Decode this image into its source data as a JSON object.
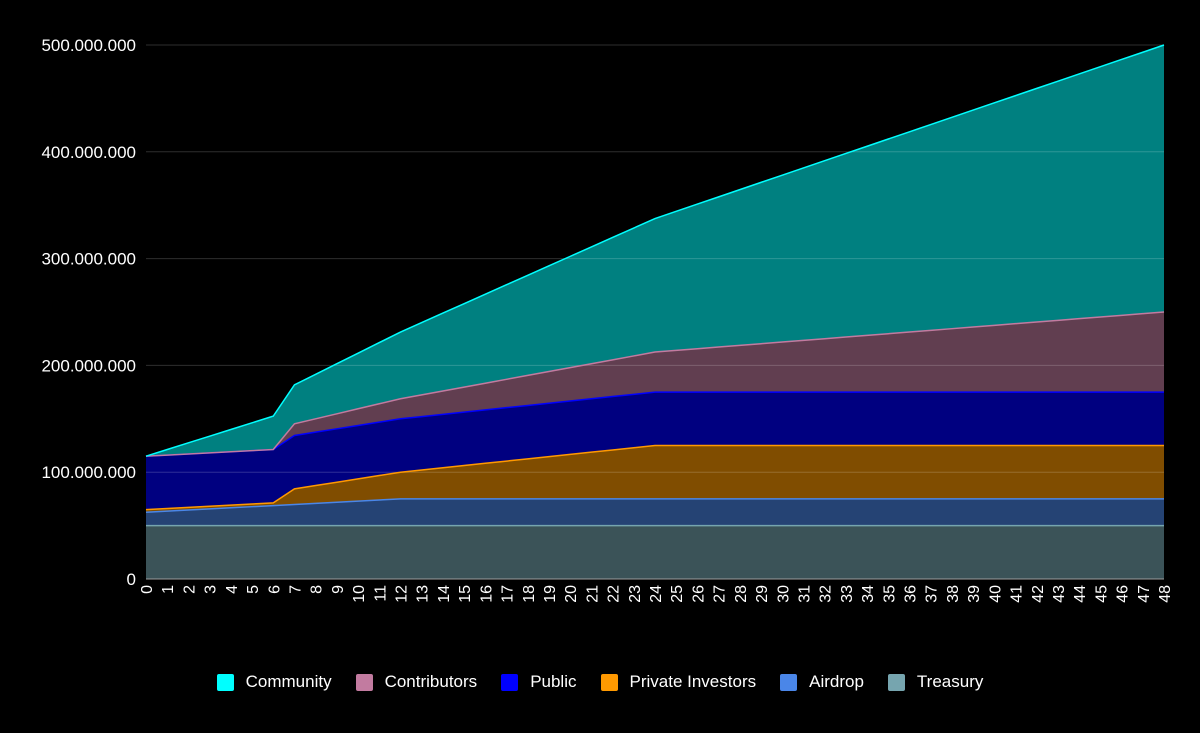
{
  "chart_data": {
    "type": "area",
    "stacked": true,
    "title": "",
    "xlabel": "",
    "ylabel": "",
    "x": [
      0,
      1,
      2,
      3,
      4,
      5,
      6,
      7,
      8,
      9,
      10,
      11,
      12,
      13,
      14,
      15,
      16,
      17,
      18,
      19,
      20,
      21,
      22,
      23,
      24,
      25,
      26,
      27,
      28,
      29,
      30,
      31,
      32,
      33,
      34,
      35,
      36,
      37,
      38,
      39,
      40,
      41,
      42,
      43,
      44,
      45,
      46,
      47,
      48
    ],
    "ylim": [
      0,
      500000000
    ],
    "yticks": [
      0,
      100000000,
      200000000,
      300000000,
      400000000,
      500000000
    ],
    "ytick_labels": [
      "0",
      "100.000.000",
      "200.000.000",
      "300.000.000",
      "400.000.000",
      "500.000.000"
    ],
    "grid": true,
    "legend_position": "bottom",
    "background": "#000000",
    "series": [
      {
        "name": "Treasury",
        "color": "#76a5af",
        "values": [
          50000000,
          50000000,
          50000000,
          50000000,
          50000000,
          50000000,
          50000000,
          50000000,
          50000000,
          50000000,
          50000000,
          50000000,
          50000000,
          50000000,
          50000000,
          50000000,
          50000000,
          50000000,
          50000000,
          50000000,
          50000000,
          50000000,
          50000000,
          50000000,
          50000000,
          50000000,
          50000000,
          50000000,
          50000000,
          50000000,
          50000000,
          50000000,
          50000000,
          50000000,
          50000000,
          50000000,
          50000000,
          50000000,
          50000000,
          50000000,
          50000000,
          50000000,
          50000000,
          50000000,
          50000000,
          50000000,
          50000000,
          50000000,
          50000000
        ]
      },
      {
        "name": "Airdrop",
        "color": "#4a86e8",
        "values": [
          12500000,
          13541667,
          14583333,
          15625000,
          16666667,
          17708333,
          18750000,
          19791667,
          20833333,
          21875000,
          22916667,
          23958333,
          25000000,
          25000000,
          25000000,
          25000000,
          25000000,
          25000000,
          25000000,
          25000000,
          25000000,
          25000000,
          25000000,
          25000000,
          25000000,
          25000000,
          25000000,
          25000000,
          25000000,
          25000000,
          25000000,
          25000000,
          25000000,
          25000000,
          25000000,
          25000000,
          25000000,
          25000000,
          25000000,
          25000000,
          25000000,
          25000000,
          25000000,
          25000000,
          25000000,
          25000000,
          25000000,
          25000000,
          25000000
        ]
      },
      {
        "name": "Private Investors",
        "color": "#ff9900",
        "values": [
          2500000,
          2500000,
          2500000,
          2500000,
          2500000,
          2500000,
          2500000,
          14583333,
          16666667,
          18750000,
          20833333,
          22916667,
          25000000,
          27083333,
          29166667,
          31250000,
          33333333,
          35416667,
          37500000,
          39583333,
          41666667,
          43750000,
          45833333,
          47916667,
          50000000,
          50000000,
          50000000,
          50000000,
          50000000,
          50000000,
          50000000,
          50000000,
          50000000,
          50000000,
          50000000,
          50000000,
          50000000,
          50000000,
          50000000,
          50000000,
          50000000,
          50000000,
          50000000,
          50000000,
          50000000,
          50000000,
          50000000,
          50000000,
          50000000
        ]
      },
      {
        "name": "Public",
        "color": "#0000ff",
        "values": [
          50000000,
          50000000,
          50000000,
          50000000,
          50000000,
          50000000,
          50000000,
          50000000,
          50000000,
          50000000,
          50000000,
          50000000,
          50000000,
          50000000,
          50000000,
          50000000,
          50000000,
          50000000,
          50000000,
          50000000,
          50000000,
          50000000,
          50000000,
          50000000,
          50000000,
          50000000,
          50000000,
          50000000,
          50000000,
          50000000,
          50000000,
          50000000,
          50000000,
          50000000,
          50000000,
          50000000,
          50000000,
          50000000,
          50000000,
          50000000,
          50000000,
          50000000,
          50000000,
          50000000,
          50000000,
          50000000,
          50000000,
          50000000,
          50000000
        ]
      },
      {
        "name": "Contributors",
        "color": "#c27ba0",
        "values": [
          0,
          0,
          0,
          0,
          0,
          0,
          0,
          10937500,
          12500000,
          14062500,
          15625000,
          17187500,
          18750000,
          20312500,
          21875000,
          23437500,
          25000000,
          26562500,
          28125000,
          29687500,
          31250000,
          32812500,
          34375000,
          35937500,
          37500000,
          39062500,
          40625000,
          42187500,
          43750000,
          45312500,
          46875000,
          48437500,
          50000000,
          51562500,
          53125000,
          54687500,
          56250000,
          57812500,
          59375000,
          60937500,
          62500000,
          64062500,
          65625000,
          67187500,
          68750000,
          70312500,
          71875000,
          73437500,
          75000000
        ]
      },
      {
        "name": "Community",
        "color": "#00ffff",
        "values": [
          0,
          5208333,
          10416667,
          15625000,
          20833333,
          26041667,
          31250000,
          36458333,
          41666667,
          46875000,
          52083333,
          57291667,
          62500000,
          67708333,
          72916667,
          78125000,
          83333333,
          88541667,
          93750000,
          98958333,
          104166667,
          109375000,
          114583333,
          119791667,
          125000000,
          130208333,
          135416667,
          140625000,
          145833333,
          151041667,
          156250000,
          161458333,
          166666667,
          171875000,
          177083333,
          182291667,
          187500000,
          192708333,
          197916667,
          203125000,
          208333333,
          213541667,
          218750000,
          223958333,
          229166667,
          234375000,
          239583333,
          244791667,
          250000000
        ]
      }
    ],
    "legend": [
      "Community",
      "Contributors",
      "Public",
      "Private Investors",
      "Airdrop",
      "Treasury"
    ]
  }
}
